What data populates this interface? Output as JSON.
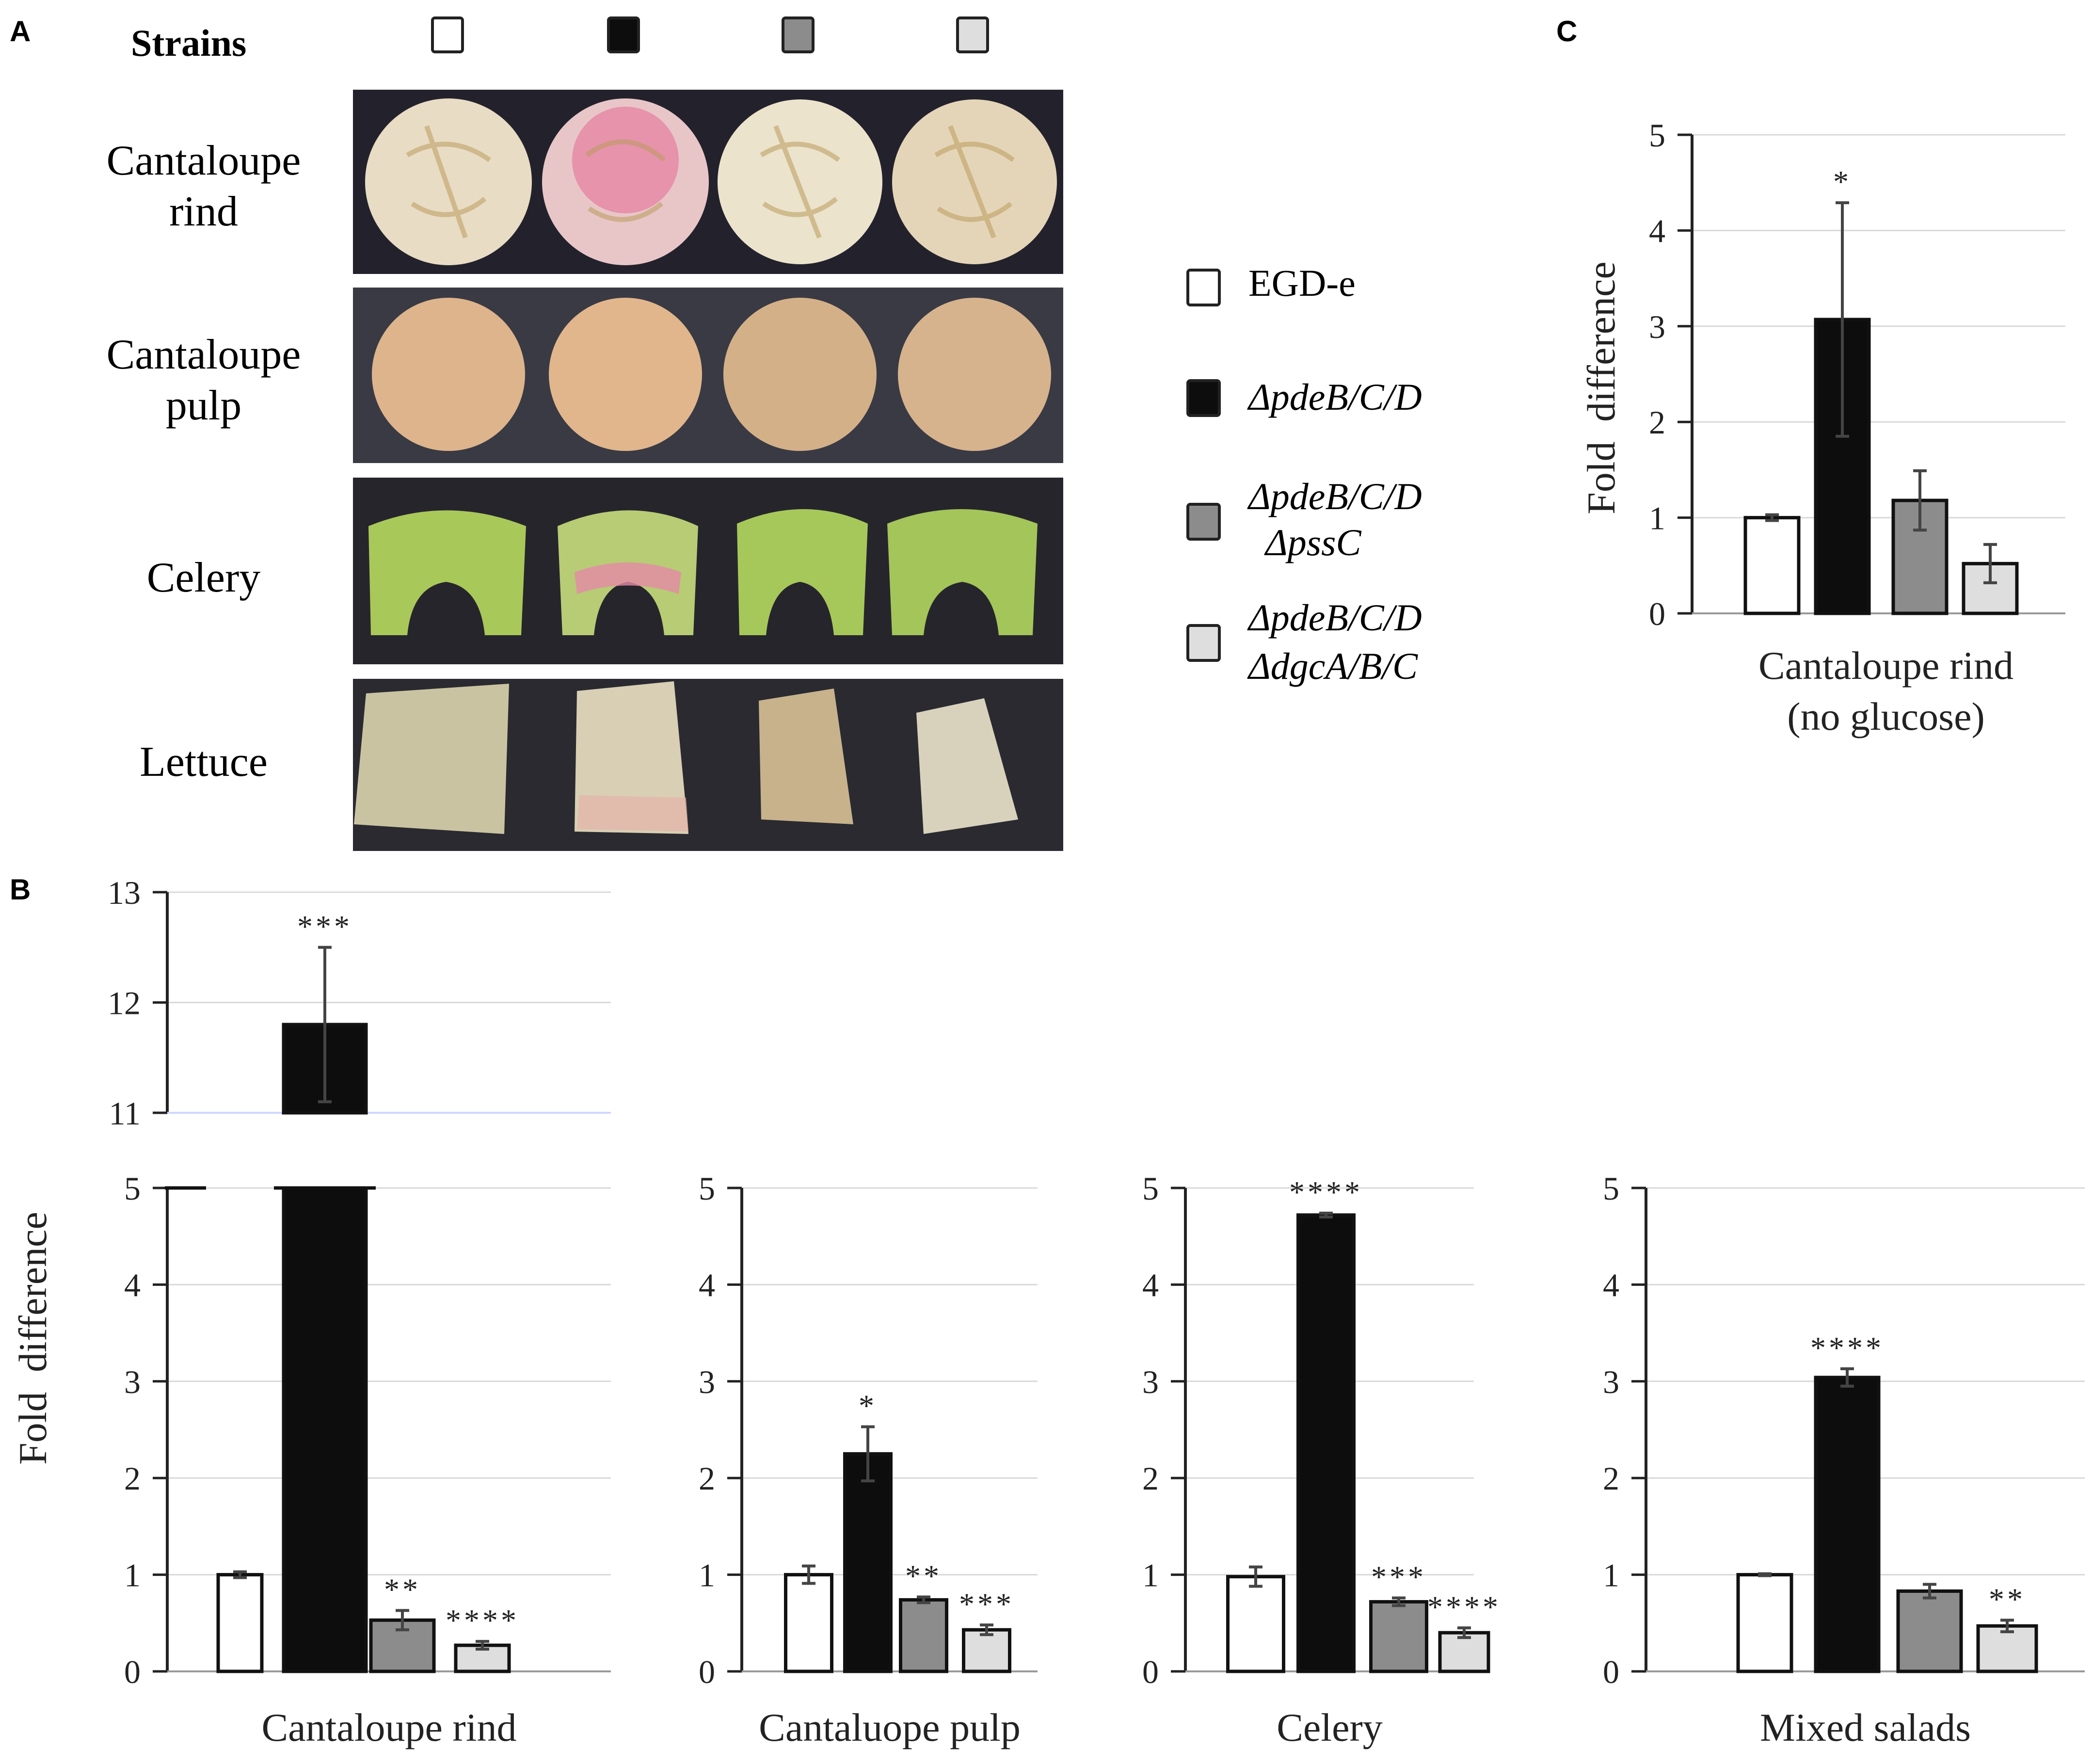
{
  "panel_labels": {
    "a": "A",
    "b": "B",
    "c": "C"
  },
  "panel_a": {
    "header": "Strains",
    "rows": [
      "Cantaloupe rind",
      "Cantaloupe pulp",
      "Celery",
      "Lettuce"
    ]
  },
  "legend": {
    "items": [
      {
        "name": "EGD-e",
        "color": "#ffffff"
      },
      {
        "name": "ΔpdeB/C/D",
        "color": "#0d0d0d"
      },
      {
        "name": "ΔpdeB/C/D ΔpssC",
        "line1": "ΔpdeB/C/D",
        "line2": "ΔpssC",
        "color": "#8c8c8c"
      },
      {
        "name": "ΔpdeB/C/D ΔdgcA/B/C",
        "line1": "ΔpdeB/C/D",
        "line2": "ΔdgcA/B/C",
        "color": "#dedede"
      }
    ]
  },
  "colors": {
    "photo_bg": "#23222c",
    "rind": "#e8dcc4",
    "rind_pink": "#e58aa6",
    "pulp": "#ddb48c",
    "celery": "#a8c85a",
    "lettuce": "#c9c3a2"
  },
  "chart_data": [
    {
      "id": "B1",
      "type": "bar",
      "title": "",
      "xlabel": "Cantaloupe rind",
      "ylabel": "Fold difference",
      "ylim": [
        0,
        5
      ],
      "ylim_break_upper": [
        11,
        13
      ],
      "yticks": [
        "0",
        "1",
        "2",
        "3",
        "4",
        "5"
      ],
      "yticks_upper": [
        "11",
        "12",
        "13"
      ],
      "series": [
        {
          "name": "EGD-e",
          "value": 1.0,
          "error": 0.03,
          "sig": ""
        },
        {
          "name": "ΔpdeB/C/D",
          "value": 11.8,
          "error": 0.7,
          "sig": "***"
        },
        {
          "name": "ΔpdeB/C/D ΔpssC",
          "value": 0.53,
          "error": 0.1,
          "sig": "**"
        },
        {
          "name": "ΔpdeB/C/D ΔdgcA/B/C",
          "value": 0.27,
          "error": 0.04,
          "sig": "****"
        }
      ]
    },
    {
      "id": "B2",
      "type": "bar",
      "xlabel": "Cantaluope pulp",
      "ylim": [
        0,
        5
      ],
      "yticks": [
        "0",
        "1",
        "2",
        "3",
        "4",
        "5"
      ],
      "series": [
        {
          "name": "EGD-e",
          "value": 1.0,
          "error": 0.09,
          "sig": ""
        },
        {
          "name": "ΔpdeB/C/D",
          "value": 2.25,
          "error": 0.28,
          "sig": "*"
        },
        {
          "name": "ΔpdeB/C/D ΔpssC",
          "value": 0.74,
          "error": 0.03,
          "sig": "**"
        },
        {
          "name": "ΔpdeB/C/D ΔdgcA/B/C",
          "value": 0.43,
          "error": 0.05,
          "sig": "***"
        }
      ]
    },
    {
      "id": "B3",
      "type": "bar",
      "xlabel": "Celery",
      "ylim": [
        0,
        5
      ],
      "yticks": [
        "0",
        "1",
        "2",
        "3",
        "4",
        "5"
      ],
      "series": [
        {
          "name": "EGD-e",
          "value": 0.98,
          "error": 0.1,
          "sig": ""
        },
        {
          "name": "ΔpdeB/C/D",
          "value": 4.72,
          "error": 0.02,
          "sig": "****"
        },
        {
          "name": "ΔpdeB/C/D ΔpssC",
          "value": 0.72,
          "error": 0.04,
          "sig": "***"
        },
        {
          "name": "ΔpdeB/C/D ΔdgcA/B/C",
          "value": 0.4,
          "error": 0.05,
          "sig": "****"
        }
      ]
    },
    {
      "id": "B4",
      "type": "bar",
      "xlabel": "Mixed salads",
      "ylim": [
        0,
        5
      ],
      "yticks": [
        "0",
        "1",
        "2",
        "3",
        "4",
        "5"
      ],
      "series": [
        {
          "name": "EGD-e",
          "value": 1.0,
          "error": 0.01,
          "sig": ""
        },
        {
          "name": "ΔpdeB/C/D",
          "value": 3.04,
          "error": 0.09,
          "sig": "****"
        },
        {
          "name": "ΔpdeB/C/D ΔpssC",
          "value": 0.83,
          "error": 0.07,
          "sig": ""
        },
        {
          "name": "ΔpdeB/C/D ΔdgcA/B/C",
          "value": 0.47,
          "error": 0.06,
          "sig": "**"
        }
      ]
    },
    {
      "id": "C",
      "type": "bar",
      "xlabel": "Cantaloupe rind",
      "xlabel2": "(no glucose)",
      "ylabel": "Fold difference",
      "ylim": [
        0,
        5
      ],
      "yticks": [
        "0",
        "1",
        "2",
        "3",
        "4",
        "5"
      ],
      "series": [
        {
          "name": "EGD-e",
          "value": 1.0,
          "error": 0.03,
          "sig": ""
        },
        {
          "name": "ΔpdeB/C/D",
          "value": 3.07,
          "error": 1.22,
          "sig": "*"
        },
        {
          "name": "ΔpdeB/C/D ΔpssC",
          "value": 1.18,
          "error": 0.31,
          "sig": ""
        },
        {
          "name": "ΔpdeB/C/D ΔdgcA/B/C",
          "value": 0.52,
          "error": 0.2,
          "sig": ""
        }
      ]
    }
  ]
}
